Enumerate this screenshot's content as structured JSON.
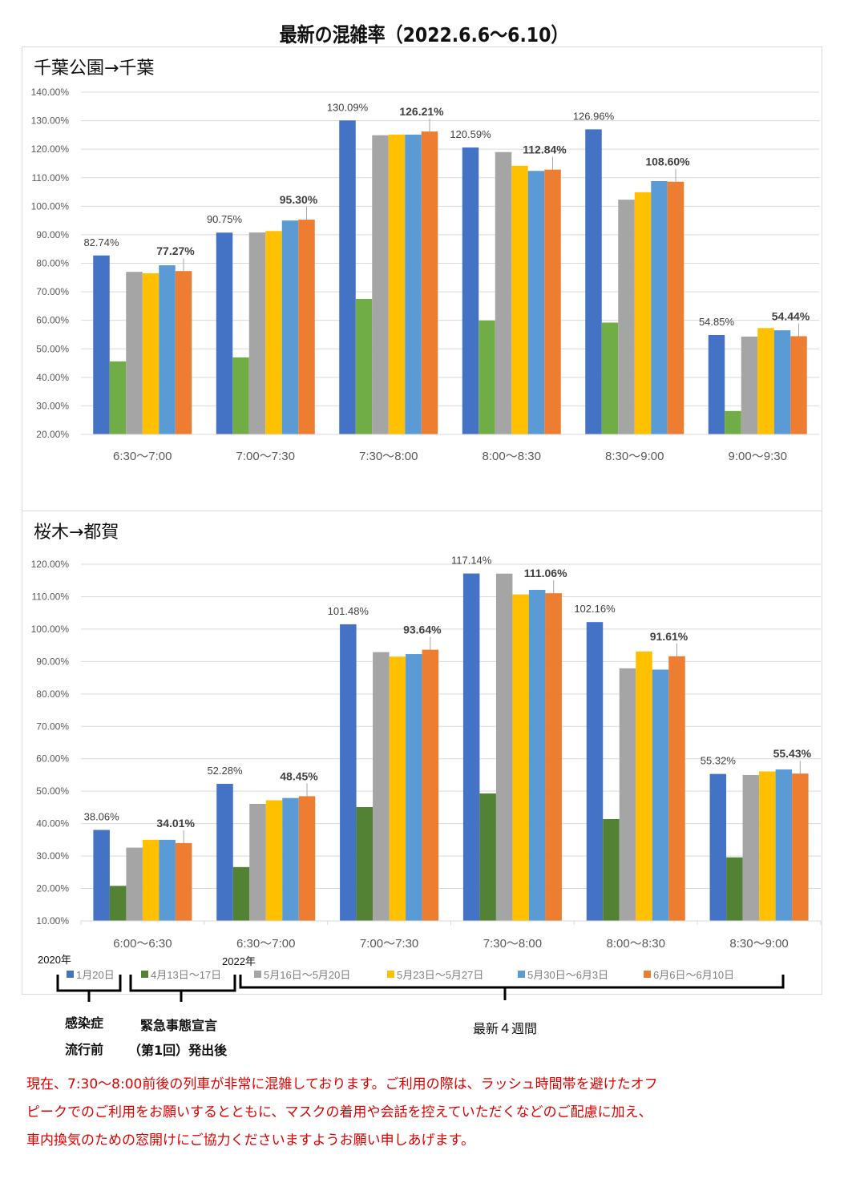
{
  "page": {
    "title": "最新の混雑率（2022.6.6～6.10）"
  },
  "colors": {
    "series": [
      "#4472c4",
      "#70ad47",
      "#a5a5a5",
      "#ffc000",
      "#5b9bd5",
      "#ed7d31"
    ],
    "series2_green": "#548235",
    "notice": "#e00000"
  },
  "legend": {
    "items": [
      "1月20日",
      "4月13日～17日",
      "5月16日～5月20日",
      "5月23日～5月27日",
      "5月30日～6月3日",
      "6月6日～6月10日"
    ],
    "year_2020": "2020年",
    "year_2022": "2022年"
  },
  "annotations": {
    "pre_pandemic_line1": "感染症",
    "pre_pandemic_line2": "流行前",
    "emergency_line1": "緊急事態宣言",
    "emergency_line2": "（第1回）発出後",
    "latest": "最新４週間"
  },
  "notice": {
    "lines": [
      "現在、7:30～8:00前後の列車が非常に混雑しております。ご利用の際は、ラッシュ時間帯を避けたオフ",
      "ピークでのご利用をお願いするとともに、マスクの着用や会話を控えていただくなどのご配慮に加え、",
      "車内換気のための窓開けにご協力くださいますようお願い申しあげます。"
    ]
  },
  "chart_data": [
    {
      "type": "bar",
      "title": "千葉公園→千葉",
      "xlabel": "",
      "ylabel": "",
      "ylim": [
        20,
        140
      ],
      "ytick_step": 10,
      "ytick_format": "0.00%",
      "grid": true,
      "legend_position": "bottom",
      "categories": [
        "6:30～7:00",
        "7:00～7:30",
        "7:30～8:00",
        "8:00～8:30",
        "8:30～9:00",
        "9:00～9:30"
      ],
      "series": [
        {
          "name": "1月20日",
          "values": [
            82.74,
            90.75,
            130.09,
            120.59,
            126.96,
            54.85
          ],
          "labels": [
            "82.74%",
            "90.75%",
            "130.09%",
            "120.59%",
            "126.96%",
            "54.85%"
          ],
          "label_bold": false
        },
        {
          "name": "4月13日～17日",
          "values": [
            45.6,
            47.0,
            67.5,
            59.9,
            59.2,
            28.2
          ]
        },
        {
          "name": "5月16日～5月20日",
          "values": [
            77.0,
            90.8,
            124.9,
            119.0,
            102.3,
            54.3
          ]
        },
        {
          "name": "5月23日～5月27日",
          "values": [
            76.5,
            91.3,
            125.1,
            114.2,
            104.9,
            57.3
          ]
        },
        {
          "name": "5月30日～6月3日",
          "values": [
            79.3,
            95.0,
            125.1,
            112.4,
            108.8,
            56.5
          ]
        },
        {
          "name": "6月6日～6月10日",
          "values": [
            77.27,
            95.3,
            126.21,
            112.84,
            108.6,
            54.44
          ],
          "labels": [
            "77.27%",
            "95.30%",
            "126.21%",
            "112.84%",
            "108.60%",
            "54.44%"
          ],
          "label_bold": true
        }
      ]
    },
    {
      "type": "bar",
      "title": "桜木→都賀",
      "xlabel": "",
      "ylabel": "",
      "ylim": [
        10,
        120
      ],
      "ytick_step": 10,
      "ytick_format": "0.00%",
      "grid": true,
      "legend_position": "bottom",
      "categories": [
        "6:00～6:30",
        "6:30～7:00",
        "7:00～7:30",
        "7:30～8:00",
        "8:00～8:30",
        "8:30～9:00"
      ],
      "series": [
        {
          "name": "1月20日",
          "values": [
            38.06,
            52.28,
            101.48,
            117.14,
            102.16,
            55.32
          ],
          "labels": [
            "38.06%",
            "52.28%",
            "101.48%",
            "117.14%",
            "102.16%",
            "55.32%"
          ],
          "label_bold": false
        },
        {
          "name": "4月13日～17日",
          "values": [
            20.8,
            26.6,
            45.1,
            49.3,
            41.4,
            29.6
          ]
        },
        {
          "name": "5月16日～5月20日",
          "values": [
            32.6,
            46.1,
            92.9,
            117.1,
            87.9,
            55.0
          ]
        },
        {
          "name": "5月23日～5月27日",
          "values": [
            35.0,
            47.2,
            91.5,
            110.7,
            93.1,
            56.1
          ]
        },
        {
          "name": "5月30日～6月3日",
          "values": [
            35.0,
            47.9,
            92.3,
            112.1,
            87.5,
            56.7
          ]
        },
        {
          "name": "6月6日～6月10日",
          "values": [
            34.01,
            48.45,
            93.64,
            111.06,
            91.61,
            55.43
          ],
          "labels": [
            "34.01%",
            "48.45%",
            "93.64%",
            "111.06%",
            "91.61%",
            "55.43%"
          ],
          "label_bold": true
        }
      ]
    }
  ]
}
